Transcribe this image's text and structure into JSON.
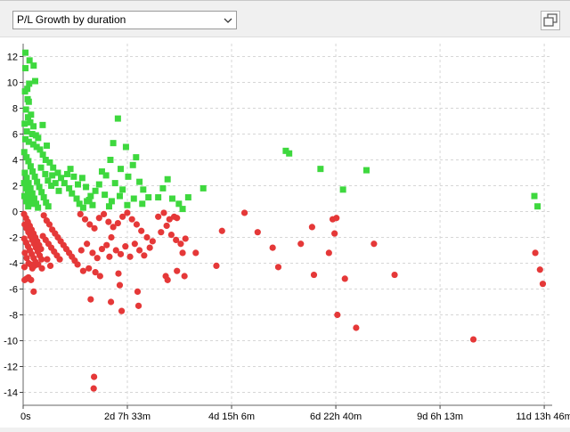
{
  "toolbar": {
    "dropdown_value": "P/L Growth by duration",
    "maximize_icon": "maximize-window-icon",
    "dropdown_icon": "chevron-down-icon"
  },
  "colors": {
    "positive": "#3ed83e",
    "negative": "#e53838",
    "grid": "#d6d6d6"
  },
  "chart_data": {
    "type": "scatter",
    "title": "",
    "xlabel": "",
    "ylabel": "",
    "grid": true,
    "x_unit": "hours",
    "xlim": [
      0,
      282
    ],
    "ylim": [
      -15,
      13
    ],
    "x_ticks": [
      {
        "value": 0,
        "label": "0s"
      },
      {
        "value": 55.55,
        "label": "2d 7h 33m"
      },
      {
        "value": 111.1,
        "label": "4d 15h 6m"
      },
      {
        "value": 166.67,
        "label": "6d 22h 40m"
      },
      {
        "value": 222.22,
        "label": "9d 6h 13m"
      },
      {
        "value": 277.77,
        "label": "11d 13h 46m"
      }
    ],
    "y_ticks": [
      12,
      10,
      8,
      6,
      4,
      2,
      0,
      -2,
      -4,
      -6,
      -8,
      -10,
      -12,
      -14
    ],
    "series": [
      {
        "marker": "square",
        "color": "#3ed83e",
        "points": [
          [
            1.2,
            12.3
          ],
          [
            1.2,
            11.1
          ],
          [
            3.4,
            11.7
          ],
          [
            5.6,
            11.3
          ],
          [
            3.2,
            9.9
          ],
          [
            1.0,
            9.3
          ],
          [
            2.2,
            9.5
          ],
          [
            6.4,
            10.1
          ],
          [
            2.4,
            8.7
          ],
          [
            3.0,
            8.5
          ],
          [
            1.5,
            7.9
          ],
          [
            4.2,
            7.5
          ],
          [
            2.6,
            7.3
          ],
          [
            0.8,
            6.8
          ],
          [
            3.8,
            6.9
          ],
          [
            5.5,
            6.6
          ],
          [
            2.0,
            6.2
          ],
          [
            4.8,
            6.0
          ],
          [
            6.8,
            5.9
          ],
          [
            8.0,
            5.7
          ],
          [
            1.2,
            5.6
          ],
          [
            3.0,
            5.4
          ],
          [
            5.4,
            5.2
          ],
          [
            7.2,
            5.0
          ],
          [
            9.0,
            4.8
          ],
          [
            10.5,
            4.4
          ],
          [
            12.0,
            4.0
          ],
          [
            14.2,
            3.8
          ],
          [
            16.0,
            3.4
          ],
          [
            18.5,
            3.0
          ],
          [
            20.2,
            2.6
          ],
          [
            22.0,
            2.2
          ],
          [
            24.5,
            1.8
          ],
          [
            26.0,
            1.4
          ],
          [
            28.5,
            1.0
          ],
          [
            30.0,
            0.6
          ],
          [
            32.0,
            0.3
          ],
          [
            34.0,
            0.8
          ],
          [
            36.0,
            1.2
          ],
          [
            38.5,
            1.6
          ],
          [
            0.6,
            4.6
          ],
          [
            1.8,
            4.2
          ],
          [
            2.8,
            3.9
          ],
          [
            4.0,
            3.5
          ],
          [
            5.0,
            3.1
          ],
          [
            6.2,
            2.7
          ],
          [
            7.4,
            2.3
          ],
          [
            8.6,
            1.9
          ],
          [
            9.8,
            1.5
          ],
          [
            11.0,
            1.1
          ],
          [
            12.2,
            0.7
          ],
          [
            13.4,
            0.4
          ],
          [
            0.9,
            3.0
          ],
          [
            1.9,
            2.6
          ],
          [
            2.9,
            2.2
          ],
          [
            3.9,
            1.8
          ],
          [
            4.9,
            1.4
          ],
          [
            5.9,
            1.0
          ],
          [
            6.9,
            0.6
          ],
          [
            7.9,
            0.3
          ],
          [
            0.5,
            2.2
          ],
          [
            1.5,
            1.8
          ],
          [
            2.5,
            1.4
          ],
          [
            3.5,
            1.0
          ],
          [
            4.5,
            0.6
          ],
          [
            0.7,
            1.2
          ],
          [
            1.7,
            0.8
          ],
          [
            2.7,
            0.4
          ],
          [
            15.5,
            2.8
          ],
          [
            17.2,
            2.2
          ],
          [
            19.0,
            1.6
          ],
          [
            23.5,
            2.9
          ],
          [
            25.2,
            3.3
          ],
          [
            27.0,
            2.7
          ],
          [
            29.2,
            2.1
          ],
          [
            31.5,
            2.6
          ],
          [
            33.5,
            1.9
          ],
          [
            35.2,
            0.9
          ],
          [
            37.0,
            0.5
          ],
          [
            9.5,
            3.4
          ],
          [
            11.8,
            2.9
          ],
          [
            13.2,
            2.4
          ],
          [
            10.4,
            6.7
          ],
          [
            12.6,
            5.1
          ],
          [
            15.0,
            2.0
          ],
          [
            48.0,
            5.3
          ],
          [
            50.5,
            7.2
          ],
          [
            52.0,
            3.3
          ],
          [
            54.8,
            5.0
          ],
          [
            46.5,
            4.0
          ],
          [
            44.2,
            2.8
          ],
          [
            42.0,
            3.1
          ],
          [
            49.0,
            2.2
          ],
          [
            53.0,
            1.7
          ],
          [
            56.0,
            2.7
          ],
          [
            58.5,
            3.6
          ],
          [
            60.2,
            4.2
          ],
          [
            62.0,
            2.3
          ],
          [
            64.0,
            1.7
          ],
          [
            66.8,
            1.1
          ],
          [
            47.2,
            0.8
          ],
          [
            51.5,
            1.2
          ],
          [
            55.5,
            0.5
          ],
          [
            59.0,
            1.0
          ],
          [
            63.5,
            0.6
          ],
          [
            40.5,
            2.1
          ],
          [
            43.5,
            1.3
          ],
          [
            45.8,
            0.4
          ],
          [
            72.0,
            1.1
          ],
          [
            74.5,
            1.8
          ],
          [
            77.0,
            2.5
          ],
          [
            79.5,
            1.0
          ],
          [
            83.0,
            0.6
          ],
          [
            88.0,
            1.1
          ],
          [
            96.0,
            1.8
          ],
          [
            85.0,
            0.2
          ],
          [
            140.0,
            4.7
          ],
          [
            141.8,
            4.5
          ],
          [
            158.5,
            3.3
          ],
          [
            170.5,
            1.7
          ],
          [
            183.0,
            3.2
          ],
          [
            272.5,
            1.2
          ],
          [
            274.2,
            0.4
          ]
        ]
      },
      {
        "marker": "circle",
        "color": "#e53838",
        "points": [
          [
            0.5,
            -0.2
          ],
          [
            1.5,
            -0.5
          ],
          [
            2.5,
            -0.8
          ],
          [
            3.5,
            -1.1
          ],
          [
            4.5,
            -1.4
          ],
          [
            5.5,
            -1.7
          ],
          [
            6.5,
            -2.0
          ],
          [
            7.5,
            -2.3
          ],
          [
            8.5,
            -2.6
          ],
          [
            9.5,
            -2.9
          ],
          [
            0.8,
            -1.0
          ],
          [
            1.8,
            -1.3
          ],
          [
            2.8,
            -1.6
          ],
          [
            3.8,
            -1.9
          ],
          [
            4.8,
            -2.2
          ],
          [
            5.8,
            -2.5
          ],
          [
            6.8,
            -2.8
          ],
          [
            7.8,
            -3.1
          ],
          [
            8.8,
            -3.4
          ],
          [
            9.8,
            -3.7
          ],
          [
            0.6,
            -2.1
          ],
          [
            1.6,
            -2.4
          ],
          [
            2.6,
            -2.7
          ],
          [
            3.6,
            -3.0
          ],
          [
            4.6,
            -3.3
          ],
          [
            5.6,
            -3.6
          ],
          [
            6.6,
            -3.9
          ],
          [
            0.9,
            -3.2
          ],
          [
            1.9,
            -3.6
          ],
          [
            2.9,
            -4.0
          ],
          [
            3.9,
            -4.1
          ],
          [
            4.9,
            -4.4
          ],
          [
            0.7,
            -4.3
          ],
          [
            11.0,
            -0.3
          ],
          [
            12.5,
            -0.7
          ],
          [
            14.0,
            -1.0
          ],
          [
            15.5,
            -1.4
          ],
          [
            17.0,
            -1.7
          ],
          [
            18.5,
            -2.0
          ],
          [
            20.0,
            -2.3
          ],
          [
            21.5,
            -2.6
          ],
          [
            23.0,
            -2.9
          ],
          [
            24.5,
            -3.2
          ],
          [
            26.0,
            -3.5
          ],
          [
            27.5,
            -3.8
          ],
          [
            29.0,
            -4.1
          ],
          [
            10.5,
            -1.9
          ],
          [
            12.0,
            -2.2
          ],
          [
            13.5,
            -2.5
          ],
          [
            15.0,
            -2.8
          ],
          [
            16.5,
            -3.1
          ],
          [
            18.0,
            -3.4
          ],
          [
            19.5,
            -3.7
          ],
          [
            6.0,
            -4.2
          ],
          [
            8.0,
            -4.1
          ],
          [
            10.0,
            -4.4
          ],
          [
            12.8,
            -3.7
          ],
          [
            14.5,
            -4.2
          ],
          [
            0.8,
            -5.3
          ],
          [
            1.8,
            -5.2
          ],
          [
            2.8,
            -5.1
          ],
          [
            4.2,
            -5.3
          ],
          [
            5.6,
            -6.2
          ],
          [
            30.5,
            -0.2
          ],
          [
            33.0,
            -0.6
          ],
          [
            35.5,
            -1.0
          ],
          [
            38.0,
            -1.3
          ],
          [
            40.5,
            -0.5
          ],
          [
            43.0,
            -0.2
          ],
          [
            45.5,
            -0.8
          ],
          [
            48.0,
            -1.2
          ],
          [
            50.5,
            -0.9
          ],
          [
            53.0,
            -0.4
          ],
          [
            55.5,
            -0.1
          ],
          [
            58.0,
            -0.6
          ],
          [
            60.5,
            -1.0
          ],
          [
            63.0,
            -1.5
          ],
          [
            66.0,
            -2.0
          ],
          [
            69.0,
            -2.3
          ],
          [
            31.0,
            -3.0
          ],
          [
            34.0,
            -2.5
          ],
          [
            37.0,
            -3.2
          ],
          [
            39.5,
            -3.6
          ],
          [
            42.0,
            -2.9
          ],
          [
            44.5,
            -2.6
          ],
          [
            47.0,
            -2.0
          ],
          [
            49.5,
            -3.0
          ],
          [
            52.0,
            -3.3
          ],
          [
            54.5,
            -2.7
          ],
          [
            57.0,
            -3.5
          ],
          [
            59.5,
            -2.5
          ],
          [
            62.0,
            -3.0
          ],
          [
            64.5,
            -3.4
          ],
          [
            67.5,
            -2.8
          ],
          [
            32.0,
            -4.6
          ],
          [
            35.0,
            -4.4
          ],
          [
            38.5,
            -4.7
          ],
          [
            41.0,
            -5.0
          ],
          [
            36.0,
            -6.8
          ],
          [
            46.0,
            -3.5
          ],
          [
            51.5,
            -5.7
          ],
          [
            52.5,
            -7.7
          ],
          [
            61.0,
            -6.2
          ],
          [
            61.5,
            -7.3
          ],
          [
            46.8,
            -7.0
          ],
          [
            50.8,
            -4.8
          ],
          [
            37.8,
            -12.8
          ],
          [
            37.6,
            -13.7
          ],
          [
            72.0,
            -0.4
          ],
          [
            75.0,
            -0.1
          ],
          [
            78.0,
            -0.6
          ],
          [
            80.5,
            -0.4
          ],
          [
            82.0,
            -0.5
          ],
          [
            73.5,
            -1.6
          ],
          [
            76.5,
            -1.1
          ],
          [
            79.0,
            -1.8
          ],
          [
            81.5,
            -2.2
          ],
          [
            84.0,
            -2.5
          ],
          [
            86.5,
            -2.1
          ],
          [
            85.0,
            -3.2
          ],
          [
            76.0,
            -5.0
          ],
          [
            82.0,
            -4.6
          ],
          [
            77.0,
            -5.3
          ],
          [
            86.0,
            -5.0
          ],
          [
            92.0,
            -3.2
          ],
          [
            103.0,
            -4.2
          ],
          [
            106.0,
            -1.5
          ],
          [
            118.0,
            -0.1
          ],
          [
            125.0,
            -1.6
          ],
          [
            133.0,
            -2.8
          ],
          [
            136.0,
            -4.3
          ],
          [
            148.0,
            -2.5
          ],
          [
            154.0,
            -1.2
          ],
          [
            155.0,
            -4.9
          ],
          [
            163.0,
            -3.2
          ],
          [
            165.0,
            -0.6
          ],
          [
            167.0,
            -0.5
          ],
          [
            166.0,
            -1.7
          ],
          [
            167.5,
            -8.0
          ],
          [
            171.5,
            -5.2
          ],
          [
            177.5,
            -9.0
          ],
          [
            187.0,
            -2.5
          ],
          [
            198.0,
            -4.9
          ],
          [
            240.0,
            -9.9
          ],
          [
            273.0,
            -3.2
          ],
          [
            275.5,
            -4.5
          ],
          [
            277.0,
            -5.6
          ]
        ]
      }
    ]
  }
}
